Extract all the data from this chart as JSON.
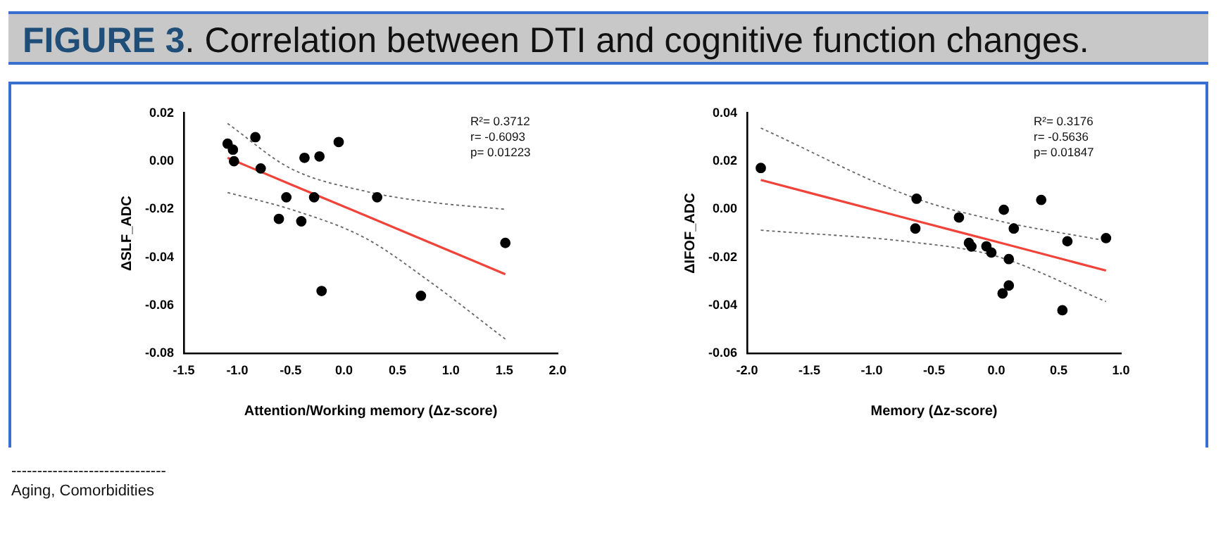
{
  "chart_data": [
    {
      "type": "scatter",
      "title": "FIGURE 3. Correlation between DTI and cognitive function changes.",
      "xlabel": "Attention/Working memory (Δz-score)",
      "ylabel": "ΔSLF_ADC",
      "xlim": [
        -1.5,
        2.0
      ],
      "xticks": [
        -1.5,
        {
          "value": -1,
          "label": "-1.0"
        },
        -0.5,
        {
          "value": 0,
          "label": "0.0"
        },
        0.5,
        {
          "value": 1,
          "label": "1.0"
        },
        1.5,
        {
          "value": 2,
          "label": "2.0"
        }
      ],
      "ylim": [
        -0.08,
        0.02
      ],
      "yticks": [
        -0.08,
        -0.06,
        -0.04,
        -0.02,
        {
          "value": 0,
          "label": "0.00"
        },
        0.02
      ],
      "grid": false,
      "legend": false,
      "annotations": [
        "R²= 0.3712",
        "r= -0.6093",
        "p= 0.01223",
        "------------------------------",
        "Aging, Comorbidities"
      ],
      "series": [
        {
          "color": "#000000",
          "marker": "circle",
          "x": [
            -1.09,
            -1.04,
            -1.03,
            -0.83,
            -0.78,
            -0.54,
            -0.61,
            -0.4,
            -0.37,
            -0.23,
            -0.28,
            -0.21,
            -0.05,
            0.31,
            0.72,
            1.51
          ],
          "values": [
            0.0073,
            0.0048,
            0.0,
            0.01,
            -0.003,
            -0.015,
            -0.024,
            -0.025,
            0.0014,
            0.002,
            -0.015,
            -0.054,
            0.008,
            -0.015,
            -0.056,
            -0.034
          ]
        },
        {
          "type": "line",
          "color": "#f0433a",
          "marker": "none",
          "line_style": "solid",
          "x": [
            -1.09,
            -0.5,
            0.2,
            0.8,
            1.51
          ],
          "values": [
            0.0014,
            -0.0096,
            -0.0226,
            -0.0338,
            -0.047
          ]
        },
        {
          "type": "line",
          "color": "#666666",
          "marker": "none",
          "line_style": "dotted",
          "x": [
            -1.09,
            -0.5,
            0.2,
            0.8,
            1.51
          ],
          "values": [
            0.0157,
            -0.003,
            -0.0125,
            -0.017,
            -0.02
          ]
        },
        {
          "type": "line",
          "color": "#666666",
          "marker": "none",
          "line_style": "dotted",
          "x": [
            -1.09,
            -0.5,
            0.2,
            0.8,
            1.51
          ],
          "values": [
            -0.013,
            -0.02,
            -0.032,
            -0.05,
            -0.074
          ]
        }
      ]
    },
    {
      "type": "scatter",
      "xlabel": "Memory (Δz-score)",
      "ylabel": "ΔIFOF_ADC",
      "xlim": [
        -2.0,
        1.0
      ],
      "xticks": [
        {
          "value": -2,
          "label": "-2.0"
        },
        -1.5,
        {
          "value": -1,
          "label": "-1.0"
        },
        -0.5,
        {
          "value": 0,
          "label": "0.0"
        },
        0.5,
        {
          "value": 1,
          "label": "1.0"
        }
      ],
      "ylim": [
        -0.06,
        0.04
      ],
      "yticks": [
        -0.06,
        -0.04,
        -0.02,
        {
          "value": 0,
          "label": "0.00"
        },
        0.02,
        0.04
      ],
      "grid": false,
      "legend": false,
      "annotations": [
        "R²= 0.3176",
        "r= -0.5636",
        "p= 0.01847"
      ],
      "series": [
        {
          "color": "#000000",
          "marker": "circle",
          "x": [
            -1.89,
            -0.64,
            -0.65,
            -0.3,
            -0.22,
            -0.2,
            -0.08,
            -0.04,
            0.06,
            0.14,
            0.1,
            0.1,
            0.05,
            0.36,
            0.57,
            0.53,
            0.88
          ],
          "values": [
            0.0172,
            0.0044,
            -0.008,
            -0.0034,
            -0.014,
            -0.0155,
            -0.0154,
            -0.018,
            -0.0002,
            -0.008,
            -0.0207,
            -0.0317,
            -0.035,
            0.0039,
            -0.0133,
            -0.042,
            -0.012
          ]
        },
        {
          "type": "line",
          "color": "#f0433a",
          "marker": "none",
          "line_style": "solid",
          "x": [
            -1.89,
            -0.65,
            0.0,
            0.88
          ],
          "values": [
            0.0122,
            -0.0047,
            -0.0135,
            -0.0255
          ]
        },
        {
          "type": "line",
          "color": "#666666",
          "marker": "none",
          "line_style": "dotted",
          "x": [
            -1.89,
            -0.65,
            0.0,
            0.88
          ],
          "values": [
            0.0338,
            0.0046,
            -0.0046,
            -0.0131
          ]
        },
        {
          "type": "line",
          "color": "#666666",
          "marker": "none",
          "line_style": "dotted",
          "x": [
            -1.89,
            -0.65,
            0.0,
            0.88
          ],
          "values": [
            -0.0087,
            -0.0138,
            -0.0195,
            -0.0384
          ]
        }
      ]
    }
  ]
}
